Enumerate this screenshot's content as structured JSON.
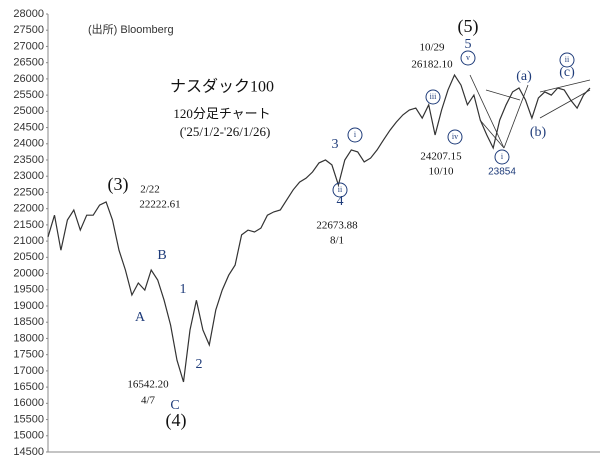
{
  "chart_data": {
    "type": "line",
    "title": "ナスダック100",
    "subtitle": "120分足チャート",
    "period": "('25/1/2-'26/1/26)",
    "source": "(出所) Bloomberg",
    "color": "#333333",
    "values": [
      21130,
      21800,
      20720,
      21650,
      21960,
      21340,
      21800,
      21800,
      22110,
      22210,
      21650,
      20720,
      20110,
      19340,
      19710,
      19490,
      20110,
      19800,
      19180,
      18410,
      17330,
      16660,
      18260,
      19180,
      18260,
      17800,
      18880,
      19490,
      19950,
      20260,
      21190,
      21340,
      21280,
      21400,
      21800,
      21900,
      21960,
      22270,
      22580,
      22820,
      22940,
      23130,
      23410,
      23500,
      23350,
      22730,
      23500,
      23810,
      23750,
      23440,
      23560,
      23810,
      24120,
      24420,
      24670,
      24890,
      25040,
      25100,
      24790,
      25200,
      24270,
      25040,
      25660,
      26120,
      25810,
      25200,
      25500,
      24730,
      24270,
      23870,
      24730,
      25200,
      25600,
      25720,
      25350,
      24790,
      25410,
      25600,
      25500,
      25720,
      25660,
      25350,
      25100,
      25500,
      25720
    ],
    "ylim": [
      14500,
      28000
    ],
    "yticks": [
      14500,
      15000,
      15500,
      16000,
      16500,
      17000,
      17500,
      18000,
      18500,
      19000,
      19500,
      20000,
      20500,
      21000,
      21500,
      22000,
      22500,
      23000,
      23500,
      24000,
      24500,
      25000,
      25500,
      26000,
      26500,
      27000,
      27500,
      28000
    ],
    "grid": false,
    "annotations": [
      "(3)",
      "2/22",
      "22222.61",
      "B",
      "A",
      "1",
      "2",
      "16542.20",
      "4/7",
      "C",
      "(4)",
      "3",
      "4",
      "22673.88",
      "8/1",
      "i",
      "ii",
      "iii",
      "iv",
      "24207.15",
      "10/10",
      "(5)",
      "5",
      "v",
      "10/29",
      "26182.10",
      "i",
      "23854",
      "(a)",
      "(b)",
      "(c)",
      "ii"
    ]
  }
}
